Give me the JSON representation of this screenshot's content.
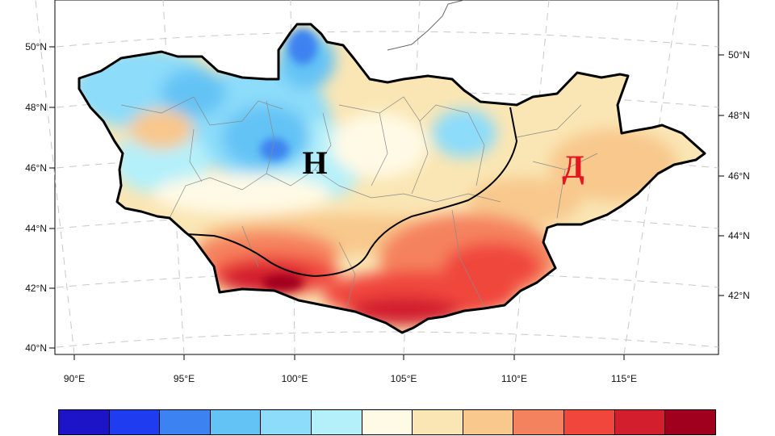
{
  "map": {
    "lon_ticks": [
      "90°E",
      "95°E",
      "100°E",
      "105°E",
      "110°E",
      "115°E"
    ],
    "lat_ticks_left": [
      "40°N",
      "42°N",
      "44°N",
      "46°N",
      "48°N",
      "50°N"
    ],
    "lat_ticks_right": [
      "42°N",
      "44°N",
      "46°N",
      "48°N",
      "50°N"
    ],
    "region_labels": [
      {
        "text": "Н",
        "color": "#000000"
      },
      {
        "text": "Д",
        "color": "#e8141e"
      }
    ],
    "background_color": "#ffffff",
    "boundary_color": "#000000"
  },
  "colorbar": {
    "colors": [
      "#1d14c8",
      "#1f3cf0",
      "#3c82f0",
      "#64c3f5",
      "#8cdcfa",
      "#b4f0fa",
      "#fffae6",
      "#fae6b4",
      "#f8c88c",
      "#f5825f",
      "#f0463c",
      "#d21e2d",
      "#a0001e"
    ]
  }
}
